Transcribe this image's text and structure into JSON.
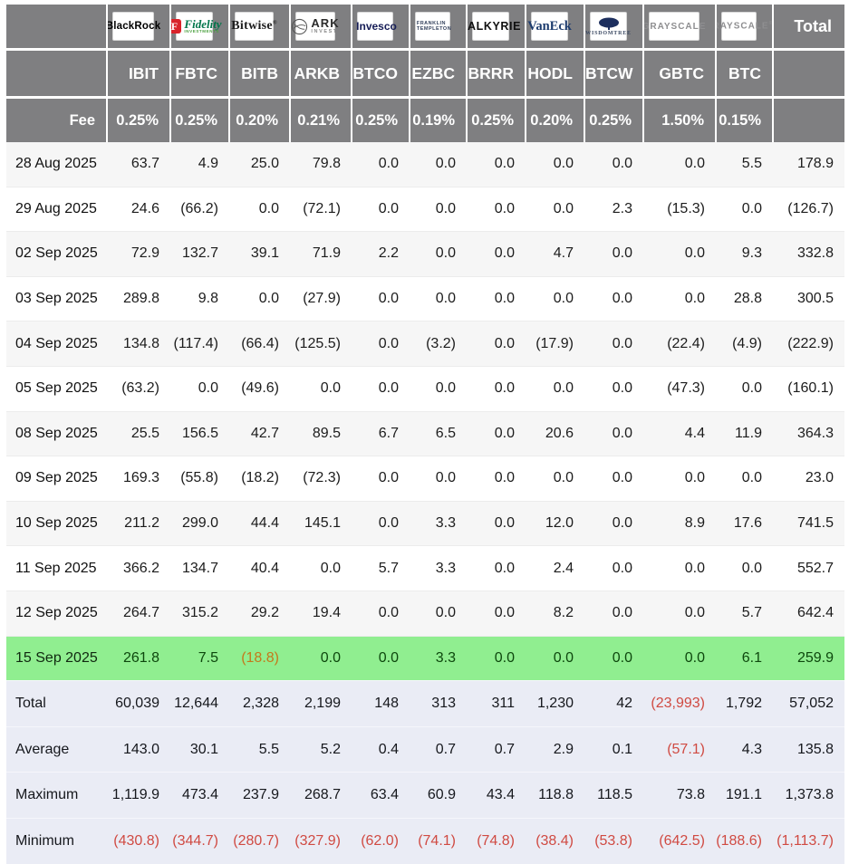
{
  "colors": {
    "header_bg": "#7f7f81",
    "row_alt_bg": "#f6f6f6",
    "highlight_bg": "#90ee90",
    "summary_bg": "#eaecf5",
    "negative_text": "#d04a42",
    "highlight_negative_text": "#c4791b",
    "highlight_text": "#0d470d"
  },
  "table": {
    "fee_label": "Fee",
    "total_label": "Total",
    "columns": [
      {
        "provider": "BlackRock",
        "logo": "blackrock",
        "text": "BlackRock",
        "ticker": "IBIT",
        "fee": "0.25%"
      },
      {
        "provider": "Fidelity",
        "logo": "fidelity",
        "text": "Fidelity",
        "subtext": "INVESTMENTS",
        "ticker": "FBTC",
        "fee": "0.25%"
      },
      {
        "provider": "Bitwise",
        "logo": "bitwise",
        "text": "Bitwise",
        "ticker": "BITB",
        "fee": "0.20%"
      },
      {
        "provider": "ARK Invest",
        "logo": "ark",
        "text": "ARK",
        "subtext": "INVEST",
        "ticker": "ARKB",
        "fee": "0.21%"
      },
      {
        "provider": "Invesco",
        "logo": "invesco",
        "text": "Invesco",
        "ticker": "BTCO",
        "fee": "0.25%"
      },
      {
        "provider": "Franklin Templeton",
        "logo": "franklin",
        "text": "FRANKLIN",
        "subtext": "TEMPLETON",
        "ticker": "EZBC",
        "fee": "0.19%"
      },
      {
        "provider": "Valkyrie",
        "logo": "valkyrie",
        "text": "VALKYRIE",
        "ticker": "BRRR",
        "fee": "0.25%"
      },
      {
        "provider": "VanEck",
        "logo": "vaneck",
        "text": "VanEck",
        "ticker": "HODL",
        "fee": "0.20%"
      },
      {
        "provider": "WisdomTree",
        "logo": "wisdomtree",
        "text": "WISDOMTREE",
        "ticker": "BTCW",
        "fee": "0.25%"
      },
      {
        "provider": "Grayscale",
        "logo": "grayscale",
        "text": "GRAYSCALE",
        "ticker": "GBTC",
        "fee": "1.50%"
      },
      {
        "provider": "Grayscale",
        "logo": "grayscale2",
        "text": "GRAYSCALE",
        "ticker": "BTC",
        "fee": "0.15%"
      }
    ],
    "rows": [
      {
        "date": "28 Aug 2025",
        "values": [
          "63.7",
          "4.9",
          "25.0",
          "79.8",
          "0.0",
          "0.0",
          "0.0",
          "0.0",
          "0.0",
          "0.0",
          "5.5"
        ],
        "total": "178.9",
        "highlight": false
      },
      {
        "date": "29 Aug 2025",
        "values": [
          "24.6",
          "(66.2)",
          "0.0",
          "(72.1)",
          "0.0",
          "0.0",
          "0.0",
          "0.0",
          "2.3",
          "(15.3)",
          "0.0"
        ],
        "total": "(126.7)",
        "highlight": false
      },
      {
        "date": "02 Sep 2025",
        "values": [
          "72.9",
          "132.7",
          "39.1",
          "71.9",
          "2.2",
          "0.0",
          "0.0",
          "4.7",
          "0.0",
          "0.0",
          "9.3"
        ],
        "total": "332.8",
        "highlight": false
      },
      {
        "date": "03 Sep 2025",
        "values": [
          "289.8",
          "9.8",
          "0.0",
          "(27.9)",
          "0.0",
          "0.0",
          "0.0",
          "0.0",
          "0.0",
          "0.0",
          "28.8"
        ],
        "total": "300.5",
        "highlight": false
      },
      {
        "date": "04 Sep 2025",
        "values": [
          "134.8",
          "(117.4)",
          "(66.4)",
          "(125.5)",
          "0.0",
          "(3.2)",
          "0.0",
          "(17.9)",
          "0.0",
          "(22.4)",
          "(4.9)"
        ],
        "total": "(222.9)",
        "highlight": false
      },
      {
        "date": "05 Sep 2025",
        "values": [
          "(63.2)",
          "0.0",
          "(49.6)",
          "0.0",
          "0.0",
          "0.0",
          "0.0",
          "0.0",
          "0.0",
          "(47.3)",
          "0.0"
        ],
        "total": "(160.1)",
        "highlight": false
      },
      {
        "date": "08 Sep 2025",
        "values": [
          "25.5",
          "156.5",
          "42.7",
          "89.5",
          "6.7",
          "6.5",
          "0.0",
          "20.6",
          "0.0",
          "4.4",
          "11.9"
        ],
        "total": "364.3",
        "highlight": false
      },
      {
        "date": "09 Sep 2025",
        "values": [
          "169.3",
          "(55.8)",
          "(18.2)",
          "(72.3)",
          "0.0",
          "0.0",
          "0.0",
          "0.0",
          "0.0",
          "0.0",
          "0.0"
        ],
        "total": "23.0",
        "highlight": false
      },
      {
        "date": "10 Sep 2025",
        "values": [
          "211.2",
          "299.0",
          "44.4",
          "145.1",
          "0.0",
          "3.3",
          "0.0",
          "12.0",
          "0.0",
          "8.9",
          "17.6"
        ],
        "total": "741.5",
        "highlight": false
      },
      {
        "date": "11 Sep 2025",
        "values": [
          "366.2",
          "134.7",
          "40.4",
          "0.0",
          "5.7",
          "3.3",
          "0.0",
          "2.4",
          "0.0",
          "0.0",
          "0.0"
        ],
        "total": "552.7",
        "highlight": false
      },
      {
        "date": "12 Sep 2025",
        "values": [
          "264.7",
          "315.2",
          "29.2",
          "19.4",
          "0.0",
          "0.0",
          "0.0",
          "8.2",
          "0.0",
          "0.0",
          "5.7"
        ],
        "total": "642.4",
        "highlight": false
      },
      {
        "date": "15 Sep 2025",
        "values": [
          "261.8",
          "7.5",
          "(18.8)",
          "0.0",
          "0.0",
          "3.3",
          "0.0",
          "0.0",
          "0.0",
          "0.0",
          "6.1"
        ],
        "total": "259.9",
        "highlight": true
      }
    ],
    "summary": [
      {
        "label": "Total",
        "values": [
          "60,039",
          "12,644",
          "2,328",
          "2,199",
          "148",
          "313",
          "311",
          "1,230",
          "42",
          "(23,993)",
          "1,792"
        ],
        "total": "57,052"
      },
      {
        "label": "Average",
        "values": [
          "143.0",
          "30.1",
          "5.5",
          "5.2",
          "0.4",
          "0.7",
          "0.7",
          "2.9",
          "0.1",
          "(57.1)",
          "4.3"
        ],
        "total": "135.8"
      },
      {
        "label": "Maximum",
        "values": [
          "1,119.9",
          "473.4",
          "237.9",
          "268.7",
          "63.4",
          "60.9",
          "43.4",
          "118.8",
          "118.5",
          "73.8",
          "191.1"
        ],
        "total": "1,373.8"
      },
      {
        "label": "Minimum",
        "values": [
          "(430.8)",
          "(344.7)",
          "(280.7)",
          "(327.9)",
          "(62.0)",
          "(74.1)",
          "(74.8)",
          "(38.4)",
          "(53.8)",
          "(642.5)",
          "(188.6)"
        ],
        "total": "(1,113.7)"
      }
    ]
  }
}
